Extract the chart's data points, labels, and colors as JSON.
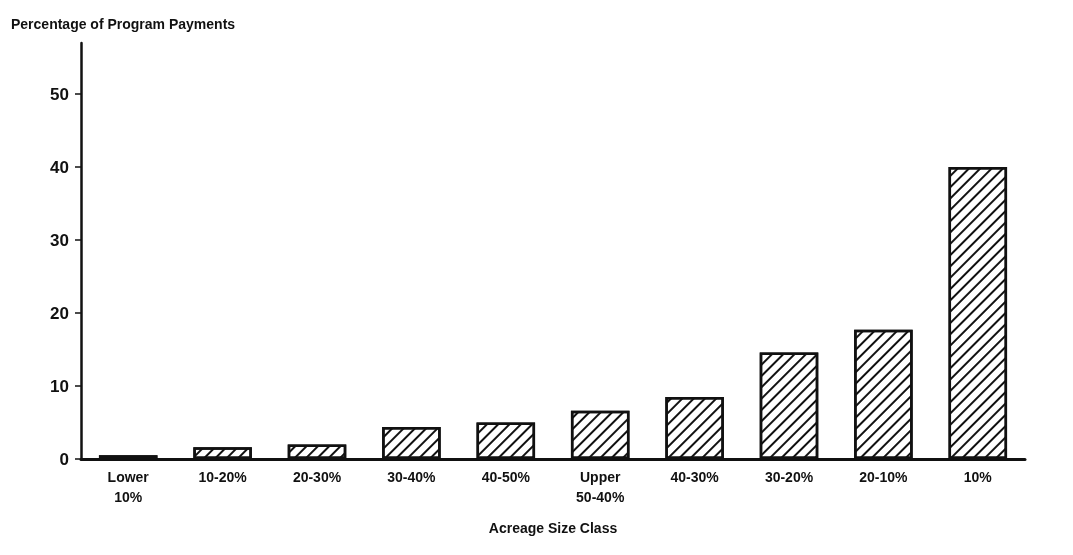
{
  "chart_data": {
    "type": "bar",
    "ylabel": "Percentage of Program Payments",
    "xlabel": "Acreage Size Class",
    "categories": [
      "Lower\n10%",
      "10-20%",
      "20-30%",
      "30-40%",
      "40-50%",
      "Upper\n50-40%",
      "40-30%",
      "30-20%",
      "20-10%",
      "10%"
    ],
    "values": [
      0.5,
      1.6,
      2.0,
      4.4,
      5.0,
      6.6,
      8.5,
      14.6,
      17.7,
      40
    ],
    "color": "#111111",
    "ylim": [
      0,
      57
    ],
    "yticks": [
      0,
      10,
      20,
      30,
      40,
      50
    ],
    "grid": false
  }
}
